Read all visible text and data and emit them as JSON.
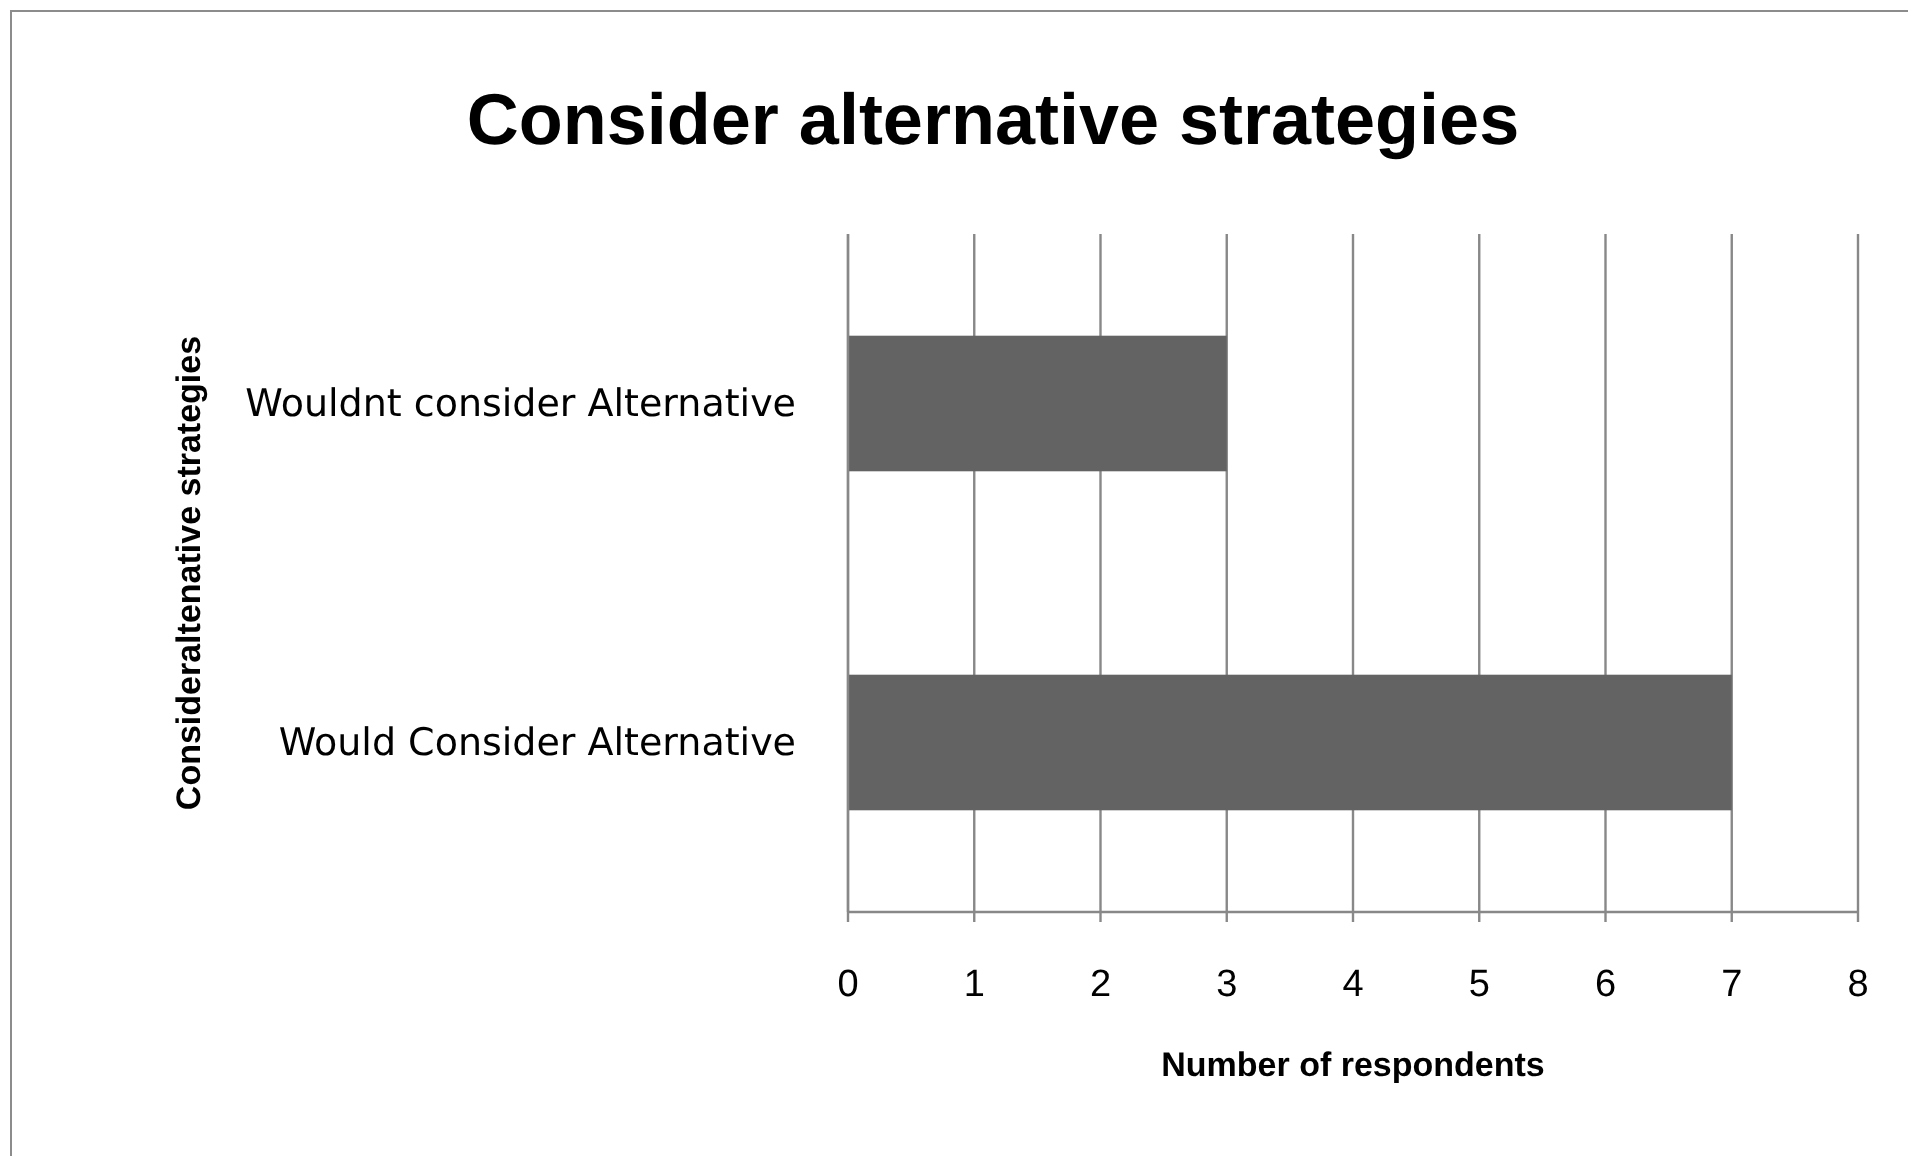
{
  "chart_data": {
    "type": "bar",
    "orientation": "horizontal",
    "title": "Consider alternative strategies",
    "xlabel": "Number of respondents",
    "ylabel": "Consideraltenative strategies",
    "categories": [
      "Wouldnt consider Alternative",
      "Would Consider Alternative"
    ],
    "values": [
      3,
      7
    ],
    "color": "#636363",
    "xlim": [
      0,
      8
    ],
    "xticks": [
      0,
      1,
      2,
      3,
      4,
      5,
      6,
      7,
      8
    ],
    "grid": "x"
  }
}
